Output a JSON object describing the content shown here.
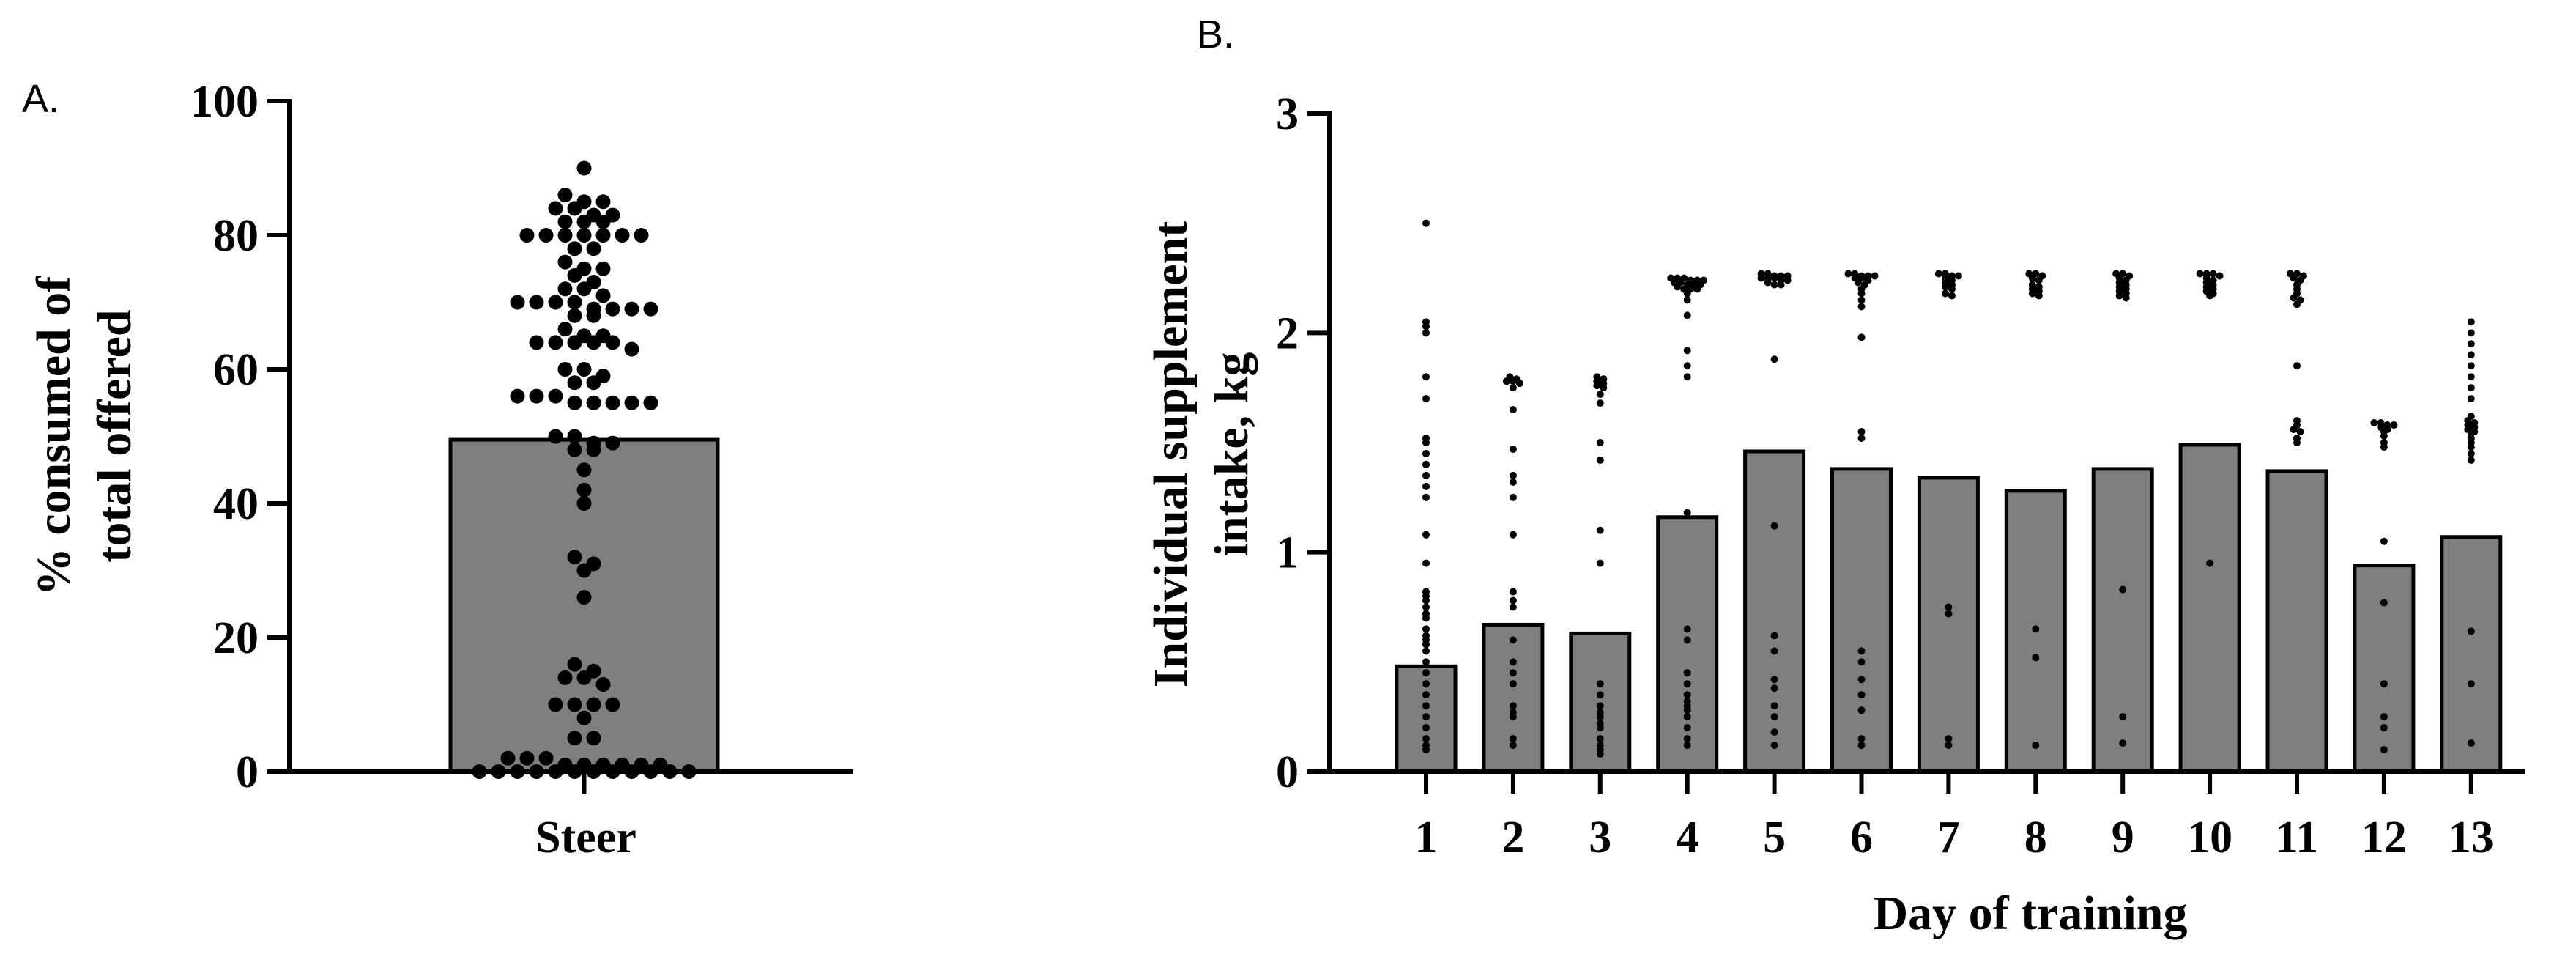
{
  "chart_data": [
    {
      "panel_label": "A.",
      "type": "bar",
      "categories": [
        "Steer"
      ],
      "values": [
        49.5
      ],
      "ylabel_lines": [
        "% consumed of",
        "total offered"
      ],
      "xlabel": "",
      "ylim": [
        0,
        100
      ],
      "yticks": [
        0,
        20,
        40,
        60,
        80,
        100
      ],
      "bar_color": "#7f7f7f",
      "grid": false,
      "points": [
        90,
        86,
        85,
        85,
        84,
        84,
        83,
        83,
        82,
        82,
        82,
        80,
        80,
        80,
        80,
        80,
        80,
        80,
        78,
        78,
        76,
        75,
        75,
        74,
        73,
        72,
        72,
        71,
        70,
        70,
        70,
        70,
        69,
        69,
        69,
        69,
        68,
        68,
        66,
        65,
        65,
        64,
        64,
        64,
        64,
        64,
        63,
        60,
        60,
        59,
        58,
        58,
        56,
        56,
        56,
        55,
        55,
        55,
        55,
        55,
        50,
        50,
        49,
        49,
        48,
        48,
        45,
        42,
        40,
        32,
        31,
        30,
        26,
        16,
        15,
        14,
        14,
        13,
        10,
        10,
        10,
        10,
        8,
        5,
        5,
        2,
        2,
        2,
        1,
        1,
        1,
        1,
        1,
        1,
        0,
        0,
        0,
        0,
        0,
        0,
        0,
        0,
        0,
        0,
        0,
        0
      ]
    },
    {
      "panel_label": "B.",
      "type": "bar",
      "categories": [
        "1",
        "2",
        "3",
        "4",
        "5",
        "6",
        "7",
        "8",
        "9",
        "10",
        "11",
        "12",
        "13"
      ],
      "values": [
        0.48,
        0.67,
        0.63,
        1.16,
        1.46,
        1.38,
        1.34,
        1.28,
        1.38,
        1.49,
        1.37,
        0.94,
        1.07
      ],
      "xlabel": "Day of training",
      "ylabel_lines": [
        "Individual supplement",
        "intake, kg"
      ],
      "ylim": [
        0,
        3
      ],
      "yticks": [
        0,
        1,
        2,
        3
      ],
      "bar_color": "#7f7f7f",
      "grid": false,
      "points": [
        [
          2.5,
          2.05,
          2.03,
          2.0,
          1.8,
          1.7,
          1.52,
          1.5,
          1.45,
          1.4,
          1.35,
          1.3,
          1.25,
          1.08,
          0.95,
          0.82,
          0.8,
          0.78,
          0.75,
          0.72,
          0.7,
          0.65,
          0.62,
          0.6,
          0.58,
          0.55,
          0.5,
          0.45,
          0.4,
          0.35,
          0.3,
          0.25,
          0.2,
          0.15,
          0.12,
          0.1
        ],
        [
          1.8,
          1.79,
          1.78,
          1.78,
          1.77,
          1.75,
          1.65,
          1.47,
          1.35,
          1.32,
          1.25,
          1.08,
          0.82,
          0.78,
          0.75,
          0.6,
          0.5,
          0.45,
          0.4,
          0.3,
          0.27,
          0.25,
          0.15,
          0.12
        ],
        [
          1.8,
          1.79,
          1.78,
          1.77,
          1.76,
          1.75,
          1.72,
          1.68,
          1.5,
          1.42,
          1.1,
          0.95,
          0.4,
          0.35,
          0.3,
          0.27,
          0.25,
          0.22,
          0.2,
          0.15,
          0.12,
          0.1,
          0.08
        ],
        [
          2.25,
          2.25,
          2.25,
          2.24,
          2.24,
          2.24,
          2.23,
          2.23,
          2.22,
          2.22,
          2.22,
          2.21,
          2.2,
          2.2,
          2.2,
          2.18,
          2.15,
          2.08,
          1.92,
          1.85,
          1.8,
          1.18,
          0.65,
          0.6,
          0.45,
          0.4,
          0.35,
          0.32,
          0.3,
          0.28,
          0.25,
          0.2,
          0.15,
          0.12
        ],
        [
          2.27,
          2.27,
          2.26,
          2.26,
          2.26,
          2.25,
          2.25,
          2.25,
          2.24,
          2.24,
          2.23,
          2.22,
          2.22,
          1.88,
          1.12,
          0.62,
          0.55,
          0.42,
          0.38,
          0.3,
          0.25,
          0.18,
          0.12
        ],
        [
          2.27,
          2.27,
          2.26,
          2.26,
          2.26,
          2.25,
          2.25,
          2.24,
          2.23,
          2.22,
          2.2,
          2.18,
          2.15,
          2.12,
          1.98,
          1.55,
          1.52,
          0.55,
          0.5,
          0.42,
          0.35,
          0.28,
          0.15,
          0.12
        ],
        [
          2.27,
          2.27,
          2.26,
          2.26,
          2.25,
          2.24,
          2.23,
          2.22,
          2.21,
          2.2,
          2.18,
          2.17,
          0.75,
          0.72,
          0.15,
          0.12
        ],
        [
          2.27,
          2.27,
          2.26,
          2.25,
          2.24,
          2.22,
          2.21,
          2.2,
          2.19,
          2.18,
          2.17,
          0.65,
          0.52,
          0.12
        ],
        [
          2.27,
          2.27,
          2.26,
          2.25,
          2.24,
          2.23,
          2.22,
          2.21,
          2.2,
          2.19,
          2.18,
          2.17,
          2.16,
          0.83,
          0.25,
          0.13
        ],
        [
          2.27,
          2.27,
          2.27,
          2.26,
          2.25,
          2.24,
          2.23,
          2.22,
          2.21,
          2.2,
          2.19,
          2.18,
          2.17,
          0.95
        ],
        [
          2.27,
          2.27,
          2.26,
          2.25,
          2.24,
          2.22,
          2.2,
          2.18,
          2.16,
          2.15,
          2.13,
          1.85,
          1.6,
          1.58,
          1.56,
          1.55,
          1.52,
          1.5
        ],
        [
          1.59,
          1.59,
          1.58,
          1.58,
          1.57,
          1.56,
          1.55,
          1.53,
          1.5,
          1.48,
          1.05,
          0.77,
          0.4,
          0.25,
          0.2,
          0.1
        ],
        [
          2.05,
          2.0,
          1.95,
          1.9,
          1.85,
          1.8,
          1.75,
          1.7,
          1.62,
          1.6,
          1.59,
          1.58,
          1.57,
          1.56,
          1.55,
          1.54,
          1.52,
          1.5,
          1.48,
          1.45,
          1.42,
          0.64,
          0.4,
          0.13
        ]
      ]
    }
  ]
}
